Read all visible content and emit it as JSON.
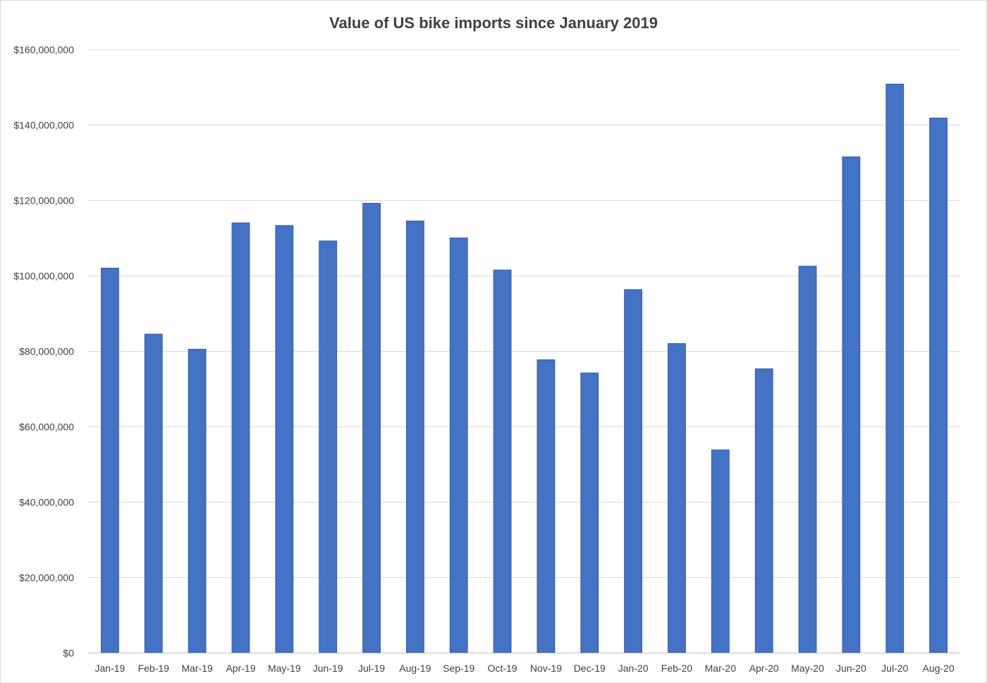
{
  "chart_data": {
    "type": "bar",
    "title": "Value of US bike imports since January 2019",
    "xlabel": "",
    "ylabel": "",
    "ylim": [
      0,
      160000000
    ],
    "grid": true,
    "legend": "none",
    "categories": [
      "Jan-19",
      "Feb-19",
      "Mar-19",
      "Apr-19",
      "May-19",
      "Jun-19",
      "Jul-19",
      "Aug-19",
      "Sep-19",
      "Oct-19",
      "Nov-19",
      "Dec-19",
      "Jan-20",
      "Feb-20",
      "Mar-20",
      "Apr-20",
      "May-20",
      "Jun-20",
      "Jul-20",
      "Aug-20"
    ],
    "values": [
      102000000,
      84500000,
      80500000,
      114000000,
      113300000,
      109200000,
      119200000,
      114500000,
      110000000,
      101500000,
      77700000,
      74200000,
      96300000,
      82000000,
      53800000,
      75300000,
      102500000,
      131500000,
      150800000,
      141800000
    ],
    "y_ticks": [
      0,
      20000000,
      40000000,
      60000000,
      80000000,
      100000000,
      120000000,
      140000000,
      160000000
    ],
    "y_tick_labels": [
      "$0",
      "$20,000,000",
      "$40,000,000",
      "$60,000,000",
      "$80,000,000",
      "$100,000,000",
      "$120,000,000",
      "$140,000,000",
      "$160,000,000"
    ],
    "colors": {
      "bar": "#4472c4",
      "grid": "#d9d9d9",
      "text": "#404040"
    }
  }
}
